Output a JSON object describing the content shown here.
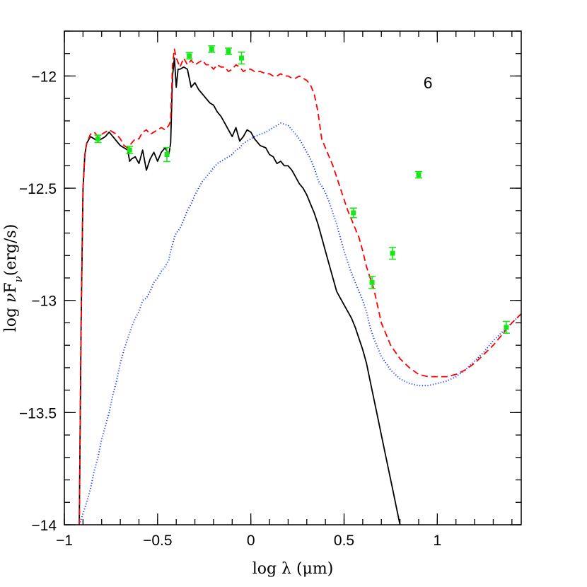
{
  "chart_data": {
    "type": "line",
    "title": "",
    "xlabel": "log λ (μm)",
    "ylabel_parts": {
      "pre": "log ",
      "nu": "ν",
      "F": "F",
      "sub": "ν",
      "post": "(erg/s)"
    },
    "xlim": [
      -1.0,
      1.45
    ],
    "ylim": [
      -14.0,
      -11.8
    ],
    "x_ticks": [
      {
        "value": -1,
        "label": "−1"
      },
      {
        "value": -0.5,
        "label": "−0.5"
      },
      {
        "value": 0,
        "label": "0"
      },
      {
        "value": 0.5,
        "label": "0.5"
      },
      {
        "value": 1,
        "label": "1"
      }
    ],
    "y_ticks": [
      {
        "value": -12,
        "label": "−12"
      },
      {
        "value": -12.5,
        "label": "−12.5"
      },
      {
        "value": -13,
        "label": "−13"
      },
      {
        "value": -13.5,
        "label": "−13.5"
      },
      {
        "value": -14,
        "label": "−14"
      }
    ],
    "x_minor_step": 0.1,
    "y_minor_step": 0.1,
    "annotation": {
      "text": "6",
      "x": 0.95,
      "y": -12.03
    },
    "series": [
      {
        "style": "solid",
        "color": "#000000",
        "x": [
          -0.92,
          -0.91,
          -0.9,
          -0.89,
          -0.88,
          -0.86,
          -0.84,
          -0.82,
          -0.8,
          -0.78,
          -0.76,
          -0.74,
          -0.72,
          -0.7,
          -0.68,
          -0.66,
          -0.65,
          -0.64,
          -0.62,
          -0.6,
          -0.58,
          -0.56,
          -0.54,
          -0.52,
          -0.5,
          -0.48,
          -0.46,
          -0.44,
          -0.43,
          -0.42,
          -0.41,
          -0.4,
          -0.39,
          -0.38,
          -0.36,
          -0.34,
          -0.32,
          -0.3,
          -0.28,
          -0.26,
          -0.24,
          -0.22,
          -0.2,
          -0.18,
          -0.16,
          -0.14,
          -0.12,
          -0.1,
          -0.08,
          -0.06,
          -0.04,
          -0.02,
          0.0,
          0.02,
          0.05,
          0.08,
          0.1,
          0.12,
          0.14,
          0.16,
          0.18,
          0.2,
          0.22,
          0.24,
          0.26,
          0.28,
          0.3,
          0.32,
          0.34,
          0.36,
          0.38,
          0.4,
          0.42,
          0.44,
          0.46,
          0.48,
          0.5,
          0.52,
          0.54,
          0.56,
          0.58,
          0.6,
          0.62,
          0.64,
          0.66,
          0.68,
          0.7,
          0.72,
          0.74,
          0.76,
          0.78,
          0.8,
          0.82,
          0.84,
          0.86,
          0.88
        ],
        "y": [
          -14.0,
          -13.1,
          -12.5,
          -12.35,
          -12.3,
          -12.27,
          -12.28,
          -12.29,
          -12.28,
          -12.27,
          -12.25,
          -12.27,
          -12.29,
          -12.31,
          -12.32,
          -12.33,
          -12.38,
          -12.37,
          -12.36,
          -12.39,
          -12.33,
          -12.42,
          -12.37,
          -12.34,
          -12.38,
          -12.34,
          -12.32,
          -12.35,
          -12.3,
          -12.0,
          -11.92,
          -12.05,
          -11.97,
          -11.97,
          -11.96,
          -11.97,
          -12.05,
          -12.03,
          -12.06,
          -12.08,
          -12.1,
          -12.12,
          -12.13,
          -12.16,
          -12.18,
          -12.21,
          -12.24,
          -12.27,
          -12.23,
          -12.29,
          -12.27,
          -12.24,
          -12.25,
          -12.28,
          -12.31,
          -12.32,
          -12.35,
          -12.36,
          -12.39,
          -12.38,
          -12.4,
          -12.4,
          -12.42,
          -12.45,
          -12.48,
          -12.5,
          -12.53,
          -12.57,
          -12.61,
          -12.66,
          -12.72,
          -12.78,
          -12.84,
          -12.9,
          -12.96,
          -12.99,
          -13.02,
          -13.05,
          -13.08,
          -13.12,
          -13.17,
          -13.22,
          -13.28,
          -13.36,
          -13.44,
          -13.52,
          -13.6,
          -13.68,
          -13.76,
          -13.84,
          -13.92,
          -14.0,
          -14.08,
          -14.16,
          -14.24,
          -14.32
        ]
      },
      {
        "style": "dotted",
        "color": "#1f3fff",
        "x": [
          -0.92,
          -0.9,
          -0.88,
          -0.86,
          -0.84,
          -0.82,
          -0.8,
          -0.78,
          -0.76,
          -0.74,
          -0.72,
          -0.7,
          -0.68,
          -0.66,
          -0.64,
          -0.62,
          -0.6,
          -0.58,
          -0.56,
          -0.54,
          -0.52,
          -0.5,
          -0.48,
          -0.46,
          -0.44,
          -0.43,
          -0.42,
          -0.41,
          -0.4,
          -0.38,
          -0.36,
          -0.34,
          -0.32,
          -0.3,
          -0.28,
          -0.26,
          -0.24,
          -0.22,
          -0.2,
          -0.18,
          -0.16,
          -0.14,
          -0.12,
          -0.1,
          -0.08,
          -0.06,
          -0.04,
          -0.02,
          0.0,
          0.02,
          0.05,
          0.08,
          0.1,
          0.12,
          0.14,
          0.16,
          0.18,
          0.2,
          0.22,
          0.24,
          0.26,
          0.28,
          0.3,
          0.32,
          0.34,
          0.36,
          0.37,
          0.38,
          0.4,
          0.42,
          0.44,
          0.46,
          0.48,
          0.5,
          0.52,
          0.54,
          0.56,
          0.58,
          0.6,
          0.62,
          0.64,
          0.66,
          0.7,
          0.75,
          0.8,
          0.85,
          0.9,
          0.95,
          1.0,
          1.05,
          1.1,
          1.15,
          1.2,
          1.25,
          1.3,
          1.35,
          1.4,
          1.45
        ],
        "y": [
          -14.0,
          -13.95,
          -13.9,
          -13.84,
          -13.76,
          -13.7,
          -13.62,
          -13.56,
          -13.5,
          -13.42,
          -13.36,
          -13.28,
          -13.22,
          -13.17,
          -13.12,
          -13.08,
          -13.05,
          -13.0,
          -12.99,
          -12.96,
          -12.92,
          -12.9,
          -12.87,
          -12.85,
          -12.82,
          -12.78,
          -12.75,
          -12.72,
          -12.7,
          -12.68,
          -12.64,
          -12.6,
          -12.57,
          -12.53,
          -12.5,
          -12.47,
          -12.45,
          -12.43,
          -12.41,
          -12.39,
          -12.38,
          -12.37,
          -12.36,
          -12.35,
          -12.33,
          -12.32,
          -12.3,
          -12.29,
          -12.28,
          -12.27,
          -12.26,
          -12.25,
          -12.24,
          -12.23,
          -12.22,
          -12.21,
          -12.215,
          -12.22,
          -12.24,
          -12.26,
          -12.28,
          -12.31,
          -12.34,
          -12.37,
          -12.41,
          -12.46,
          -12.48,
          -12.49,
          -12.52,
          -12.56,
          -12.61,
          -12.66,
          -12.72,
          -12.78,
          -12.83,
          -12.88,
          -12.92,
          -12.96,
          -13.0,
          -13.05,
          -13.12,
          -13.17,
          -13.25,
          -13.31,
          -13.35,
          -13.37,
          -13.38,
          -13.38,
          -13.37,
          -13.36,
          -13.34,
          -13.31,
          -13.27,
          -13.23,
          -13.18,
          -13.14,
          -13.1,
          -13.06
        ]
      },
      {
        "style": "dashed",
        "color": "#ff0000",
        "x": [
          -0.92,
          -0.91,
          -0.9,
          -0.89,
          -0.88,
          -0.86,
          -0.84,
          -0.82,
          -0.8,
          -0.78,
          -0.76,
          -0.74,
          -0.72,
          -0.7,
          -0.68,
          -0.66,
          -0.64,
          -0.62,
          -0.6,
          -0.58,
          -0.56,
          -0.54,
          -0.52,
          -0.5,
          -0.48,
          -0.46,
          -0.44,
          -0.43,
          -0.42,
          -0.41,
          -0.4,
          -0.38,
          -0.36,
          -0.34,
          -0.32,
          -0.3,
          -0.28,
          -0.26,
          -0.24,
          -0.22,
          -0.2,
          -0.18,
          -0.16,
          -0.14,
          -0.12,
          -0.1,
          -0.08,
          -0.06,
          -0.04,
          -0.02,
          0.0,
          0.02,
          0.05,
          0.08,
          0.1,
          0.12,
          0.14,
          0.16,
          0.18,
          0.2,
          0.22,
          0.24,
          0.26,
          0.28,
          0.3,
          0.32,
          0.34,
          0.36,
          0.37,
          0.38,
          0.4,
          0.42,
          0.44,
          0.46,
          0.48,
          0.5,
          0.52,
          0.54,
          0.56,
          0.58,
          0.6,
          0.62,
          0.64,
          0.66,
          0.7,
          0.75,
          0.8,
          0.85,
          0.9,
          0.95,
          1.0,
          1.05,
          1.1,
          1.15,
          1.2,
          1.25,
          1.3,
          1.35,
          1.4,
          1.45
        ],
        "y": [
          -14.0,
          -13.1,
          -12.5,
          -12.35,
          -12.3,
          -12.26,
          -12.25,
          -12.27,
          -12.26,
          -12.25,
          -12.24,
          -12.25,
          -12.26,
          -12.28,
          -12.31,
          -12.32,
          -12.3,
          -12.28,
          -12.28,
          -12.25,
          -12.24,
          -12.26,
          -12.25,
          -12.24,
          -12.23,
          -12.24,
          -12.22,
          -12.2,
          -11.95,
          -11.88,
          -11.92,
          -11.96,
          -11.92,
          -11.95,
          -11.93,
          -11.95,
          -11.94,
          -11.93,
          -11.95,
          -11.95,
          -11.97,
          -11.95,
          -11.96,
          -11.96,
          -11.98,
          -11.97,
          -11.95,
          -11.96,
          -11.98,
          -11.97,
          -11.97,
          -11.98,
          -11.98,
          -11.99,
          -11.99,
          -12.0,
          -12.0,
          -11.99,
          -12.0,
          -12.0,
          -12.01,
          -12.01,
          -12.0,
          -12.01,
          -12.02,
          -12.04,
          -12.08,
          -12.16,
          -12.22,
          -12.28,
          -12.32,
          -12.36,
          -12.4,
          -12.45,
          -12.5,
          -12.55,
          -12.6,
          -12.64,
          -12.68,
          -12.72,
          -12.78,
          -12.85,
          -12.9,
          -12.95,
          -13.1,
          -13.2,
          -13.26,
          -13.3,
          -13.33,
          -13.34,
          -13.34,
          -13.34,
          -13.33,
          -13.31,
          -13.28,
          -13.24,
          -13.2,
          -13.15,
          -13.1,
          -13.06
        ]
      }
    ],
    "points": [
      {
        "x": -0.82,
        "y": -12.28,
        "err": 0.01
      },
      {
        "x": -0.65,
        "y": -12.33,
        "err": 0.01
      },
      {
        "x": -0.45,
        "y": -12.35,
        "err": 0.025
      },
      {
        "x": -0.33,
        "y": -11.91,
        "err": 0.008
      },
      {
        "x": -0.21,
        "y": -11.88,
        "err": 0.008
      },
      {
        "x": -0.12,
        "y": -11.89,
        "err": 0.008
      },
      {
        "x": -0.05,
        "y": -11.92,
        "err": 0.02
      },
      {
        "x": 0.55,
        "y": -12.61,
        "err": 0.015
      },
      {
        "x": 0.65,
        "y": -12.92,
        "err": 0.02
      },
      {
        "x": 0.76,
        "y": -12.79,
        "err": 0.02
      },
      {
        "x": 0.9,
        "y": -12.44,
        "err": 0.008
      },
      {
        "x": 1.37,
        "y": -13.12,
        "err": 0.02
      }
    ],
    "point_color": "#19e619"
  }
}
